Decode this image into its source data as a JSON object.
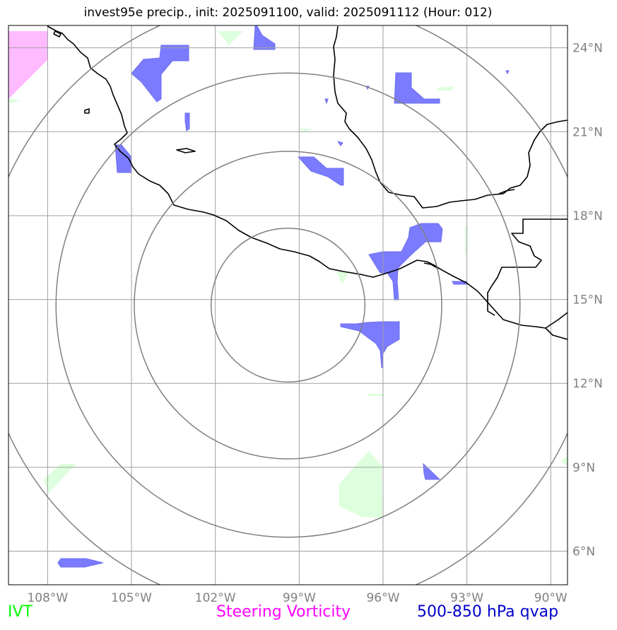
{
  "title": "invest95e precip., init: 2025091100, valid: 2025091112 (Hour: 012)",
  "map": {
    "lon_range": [
      -109.4,
      -89.4
    ],
    "lat_range": [
      4.8,
      24.8
    ],
    "lon_ticks": [
      {
        "value": -108,
        "label": "108°W"
      },
      {
        "value": -105,
        "label": "105°W"
      },
      {
        "value": -102,
        "label": "102°W"
      },
      {
        "value": -99,
        "label": "99°W"
      },
      {
        "value": -96,
        "label": "96°W"
      },
      {
        "value": -93,
        "label": "93°W"
      },
      {
        "value": -90,
        "label": "90°W"
      }
    ],
    "lat_ticks": [
      {
        "value": 24,
        "label": "24°N"
      },
      {
        "value": 21,
        "label": "21°N"
      },
      {
        "value": 18,
        "label": "18°N"
      },
      {
        "value": 15,
        "label": "15°N"
      },
      {
        "value": 12,
        "label": "12°N"
      },
      {
        "value": 9,
        "label": "9°N"
      },
      {
        "value": 6,
        "label": "6°N"
      }
    ],
    "storm_center": {
      "lon": -99.4,
      "lat": 14.8
    },
    "range_rings_deg": [
      2.75,
      5.5,
      8.3,
      11.0
    ],
    "gridlines": true
  },
  "colors": {
    "ivt": "#00ff00",
    "steering_vorticity": "#ff00ff",
    "qvap": "#0000cc",
    "qvap_fill": "#7b7bff",
    "ivt_fill": "#ddffdd",
    "vort_fill": "#ffbbff",
    "coastline": "#000000",
    "grid": "#a0a0a0",
    "rings": "#808080"
  },
  "legend": {
    "ivt": "IVT",
    "steering_vorticity": "Steering Vorticity",
    "qvap": "500-850 hPa qvap"
  }
}
